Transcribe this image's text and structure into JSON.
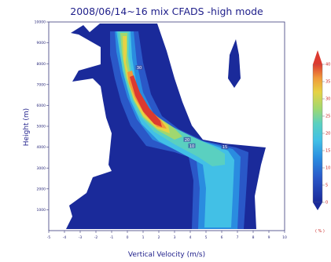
{
  "chart_data": {
    "type": "heatmap",
    "title": "2008/06/14~16 mix CFADS -high mode",
    "xlabel": "Vertical Velocity (m/s)",
    "ylabel": "Height (m)",
    "xlim": [
      -5,
      10
    ],
    "ylim": [
      0,
      10000
    ],
    "x_ticks": [
      "-5",
      "-4",
      "-3",
      "-2",
      "-1",
      "0",
      "1",
      "2",
      "3",
      "4",
      "5",
      "6",
      "7",
      "8",
      "9",
      "10"
    ],
    "y_ticks": [
      "1000",
      "2000",
      "3000",
      "4000",
      "5000",
      "6000",
      "7000",
      "8000",
      "9000",
      "10000"
    ],
    "colorbar": {
      "levels": [
        0,
        5,
        10,
        15,
        20,
        25,
        30,
        35,
        40
      ],
      "labels": [
        "0",
        "5",
        "10",
        "15",
        "20",
        "25",
        "30",
        "35",
        "40"
      ],
      "colors": [
        "#1a2a9a",
        "#2a58c8",
        "#2a8ce0",
        "#42c0e6",
        "#5ad0c0",
        "#a0d870",
        "#e6d244",
        "#f09a3a",
        "#dc3a30"
      ],
      "unit": "( % )"
    },
    "contour_labels": [
      {
        "text": "30",
        "x": 0.75,
        "y": 7800
      },
      {
        "text": "20",
        "x": 3.8,
        "y": 4350
      },
      {
        "text": "10",
        "x": 4.1,
        "y": 4050
      },
      {
        "text": "15",
        "x": 6.2,
        "y": 4000
      }
    ],
    "ridge_mode": [
      {
        "height": 9800,
        "velocity": 0.2
      },
      {
        "height": 9000,
        "velocity": 0.3
      },
      {
        "height": 8000,
        "velocity": 0.5
      },
      {
        "height": 7000,
        "velocity": 1.0
      },
      {
        "height": 6000,
        "velocity": 1.6
      },
      {
        "height": 5200,
        "velocity": 3.0
      },
      {
        "height": 4500,
        "velocity": 4.6
      },
      {
        "height": 4000,
        "velocity": 5.8
      },
      {
        "height": 3000,
        "velocity": 6.1
      },
      {
        "height": 2000,
        "velocity": 6.1
      },
      {
        "height": 1000,
        "velocity": 6.0
      },
      {
        "height": 0,
        "velocity": 6.0
      }
    ],
    "grid": false,
    "legend": "right"
  }
}
